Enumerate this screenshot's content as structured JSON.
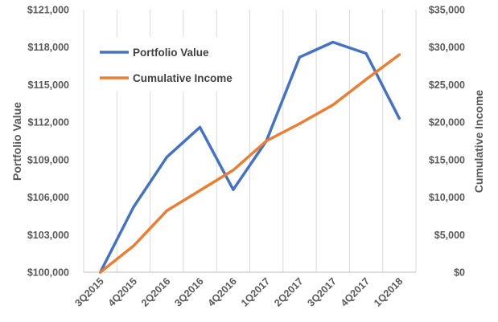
{
  "chart_data": {
    "type": "line",
    "categories": [
      "3Q2015",
      "4Q2015",
      "2Q2016",
      "3Q2016",
      "4Q2016",
      "1Q2017",
      "2Q2017",
      "3Q2017",
      "4Q2017",
      "1Q2018"
    ],
    "series": [
      {
        "name": "Portfolio Value",
        "axis": "left",
        "color": "#4472C4",
        "values": [
          100000,
          105200,
          109200,
          111600,
          106600,
          110500,
          117200,
          118400,
          117500,
          112300
        ]
      },
      {
        "name": "Cumulative Income",
        "axis": "right",
        "color": "#ED7D31",
        "values": [
          0,
          3500,
          8200,
          10900,
          13600,
          17500,
          19800,
          22300,
          25700,
          29000
        ]
      }
    ],
    "ylabel": "Portfolio Value",
    "y2label": "Cumulative Income",
    "ylim": [
      100000,
      121000
    ],
    "y2lim": [
      0,
      35000
    ],
    "yticks": [
      "$100,000",
      "$103,000",
      "$106,000",
      "$109,000",
      "$112,000",
      "$115,000",
      "$118,000",
      "$121,000"
    ],
    "y2ticks": [
      "$0",
      "$5,000",
      "$10,000",
      "$15,000",
      "$20,000",
      "$25,000",
      "$30,000",
      "$35,000"
    ],
    "grid": "vertical",
    "legend": "top-left"
  }
}
